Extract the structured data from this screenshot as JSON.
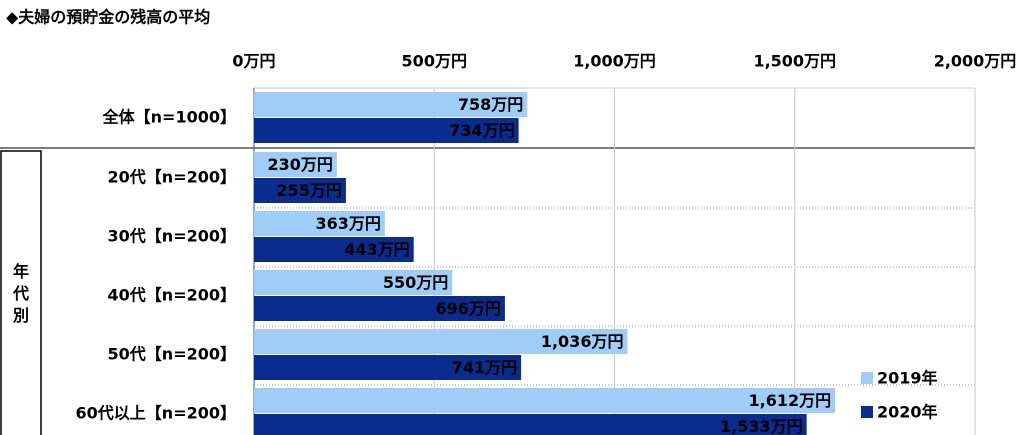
{
  "chart_data": {
    "type": "bar",
    "orientation": "horizontal",
    "title": "◆夫婦の預貯金の残高の平均",
    "group_label": "年代別",
    "categories": [
      "全体【n=1000】",
      "20代【n=200】",
      "30代【n=200】",
      "40代【n=200】",
      "50代【n=200】",
      "60代以上【n=200】"
    ],
    "series": [
      {
        "name": "2019年",
        "color": "#9fcdf7",
        "values": [
          758,
          230,
          363,
          550,
          1036,
          1612
        ],
        "value_labels": [
          "758万円",
          "230万円",
          "363万円",
          "550万円",
          "1,036万円",
          "1,612万円"
        ]
      },
      {
        "name": "2020年",
        "color": "#0b2c8f",
        "values": [
          734,
          255,
          443,
          696,
          741,
          1533
        ],
        "value_labels": [
          "734万円",
          "255万円",
          "443万円",
          "696万円",
          "741万円",
          "1,533万円"
        ]
      }
    ],
    "xlim": [
      0,
      2000
    ],
    "xticks": [
      {
        "value": 0,
        "label": "0万円"
      },
      {
        "value": 500,
        "label": "500万円"
      },
      {
        "value": 1000,
        "label": "1,000万円"
      },
      {
        "value": 1500,
        "label": "1,500万円"
      },
      {
        "value": 2000,
        "label": "2,000万円"
      }
    ],
    "grid": true,
    "legend": "lower right"
  }
}
